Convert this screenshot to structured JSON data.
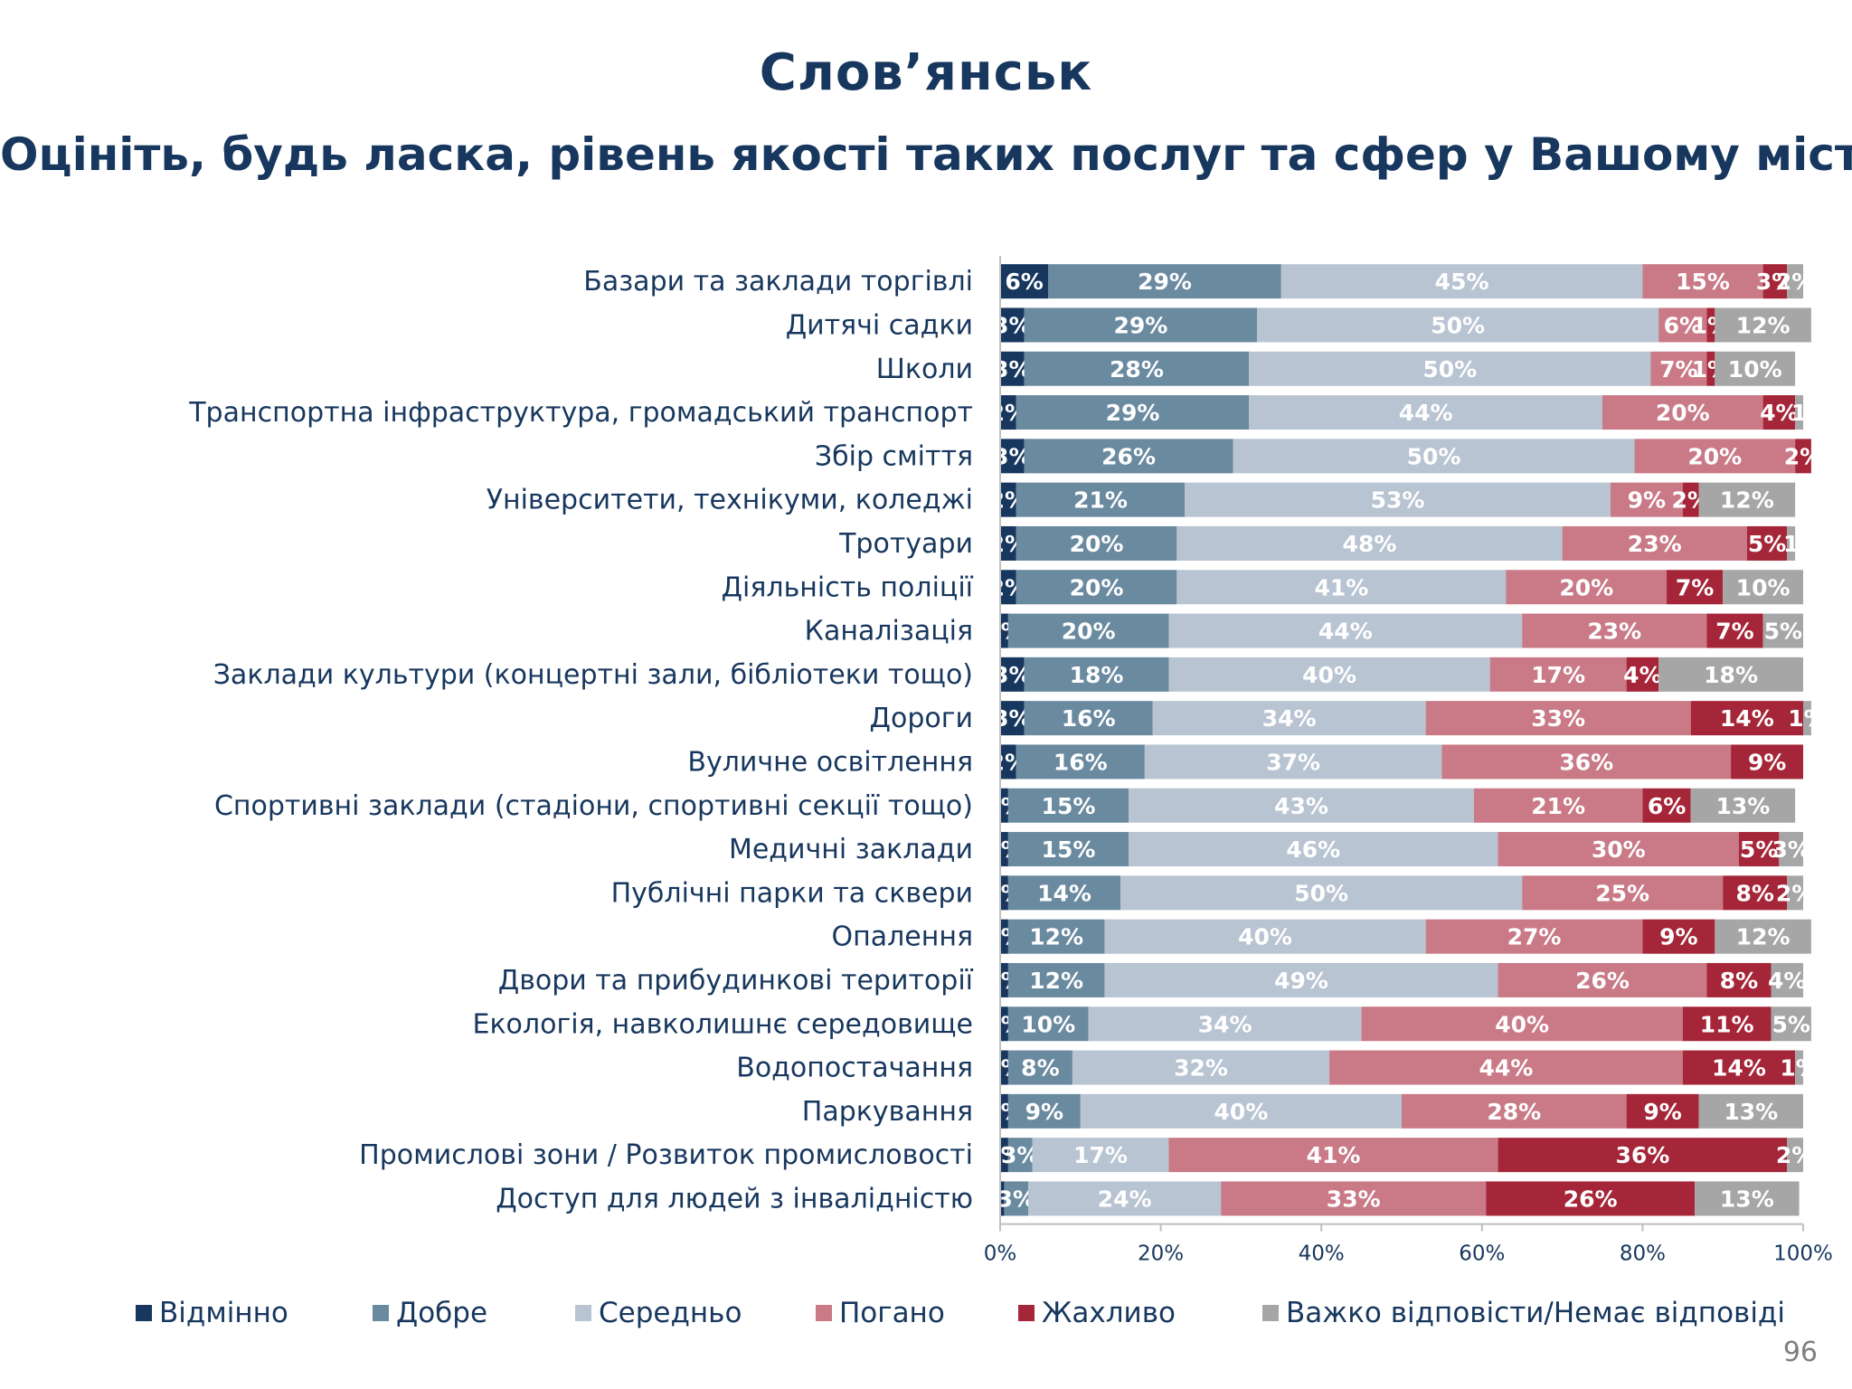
{
  "page": {
    "title": "Слов’янськ",
    "subtitle": "Оцініть, будь ласка, рівень якості таких послуг та сфер у Вашому місті",
    "page_number": "96"
  },
  "chart_data": {
    "type": "bar",
    "orientation": "horizontal",
    "stacked": "percent",
    "title": "",
    "xlabel": "",
    "ylabel": "",
    "xlim": [
      0,
      100
    ],
    "x_ticks": [
      "0%",
      "20%",
      "40%",
      "60%",
      "80%",
      "100%"
    ],
    "grid": false,
    "legend_position": "bottom",
    "categories": [
      "Базари та заклади торгівлі",
      "Дитячі садки",
      "Школи",
      "Транспортна інфраструктура, громадський транспорт",
      "Збір сміття",
      "Університети, технікуми, коледжі",
      "Тротуари",
      "Діяльність поліції",
      "Каналізація",
      "Заклади культури (концертні зали, бібліотеки тощо)",
      "Дороги",
      "Вуличне освітлення",
      "Спортивні заклади (стадіони, спортивні секції тощо)",
      "Медичні заклади",
      "Публічні парки та сквери",
      "Опалення",
      "Двори та прибудинкові території",
      "Екологія, навколишнє середовище",
      "Водопостачання",
      "Паркування",
      "Промислові зони / Розвиток промисловості",
      "Доступ для людей з інвалідністю"
    ],
    "series": [
      {
        "name": "Відмінно",
        "color": "#17375e",
        "values": [
          6,
          3,
          3,
          2,
          3,
          2,
          2,
          2,
          1,
          3,
          3,
          2,
          1,
          1,
          1,
          1,
          1,
          1,
          1,
          1,
          1,
          0.5
        ],
        "labels": [
          "6%",
          "3%",
          "3%",
          "2%",
          "3%",
          "2%",
          "2%",
          "2%",
          "1%",
          "3%",
          "3%",
          "2%",
          "1%",
          "1%",
          "1%",
          "1%",
          "1%",
          "1%",
          "1%",
          "1%",
          "1%",
          ""
        ]
      },
      {
        "name": "Добре",
        "color": "#6a8aa0",
        "values": [
          29,
          29,
          28,
          29,
          26,
          21,
          20,
          20,
          20,
          18,
          16,
          16,
          15,
          15,
          14,
          12,
          12,
          10,
          8,
          9,
          3,
          3
        ],
        "labels": [
          "29%",
          "29%",
          "28%",
          "29%",
          "26%",
          "21%",
          "20%",
          "20%",
          "20%",
          "18%",
          "16%",
          "16%",
          "15%",
          "15%",
          "14%",
          "12%",
          "12%",
          "10%",
          "8%",
          "9%",
          "3%",
          "3%"
        ]
      },
      {
        "name": "Середньо",
        "color": "#b8c4d2",
        "values": [
          45,
          50,
          50,
          44,
          50,
          53,
          48,
          41,
          44,
          40,
          34,
          37,
          43,
          46,
          50,
          40,
          49,
          34,
          32,
          40,
          17,
          24
        ],
        "labels": [
          "45%",
          "50%",
          "50%",
          "44%",
          "50%",
          "53%",
          "48%",
          "41%",
          "44%",
          "40%",
          "34%",
          "37%",
          "43%",
          "46%",
          "50%",
          "40%",
          "49%",
          "34%",
          "32%",
          "40%",
          "17%",
          "24%"
        ]
      },
      {
        "name": "Погано",
        "color": "#c97a86",
        "values": [
          15,
          6,
          7,
          20,
          20,
          9,
          23,
          20,
          23,
          17,
          33,
          36,
          21,
          30,
          25,
          27,
          26,
          40,
          44,
          28,
          41,
          33
        ],
        "labels": [
          "15%",
          "6%",
          "7%",
          "20%",
          "20%",
          "9%",
          "23%",
          "20%",
          "23%",
          "17%",
          "33%",
          "36%",
          "21%",
          "30%",
          "25%",
          "27%",
          "26%",
          "40%",
          "44%",
          "28%",
          "41%",
          "33%"
        ]
      },
      {
        "name": "Жахливо",
        "color": "#a52638",
        "values": [
          3,
          1,
          1,
          4,
          2,
          2,
          5,
          7,
          7,
          4,
          14,
          9,
          6,
          5,
          8,
          9,
          8,
          11,
          14,
          9,
          36,
          26
        ],
        "labels": [
          "3%",
          "1%",
          "1%",
          "4%",
          "2%",
          "2%",
          "5%",
          "7%",
          "7%",
          "4%",
          "14%",
          "9%",
          "6%",
          "5%",
          "8%",
          "9%",
          "8%",
          "11%",
          "14%",
          "9%",
          "36%",
          "26%"
        ]
      },
      {
        "name": "Важко відповісти/Немає відповіді",
        "color": "#a6a6a6",
        "values": [
          2,
          12,
          10,
          1,
          0,
          12,
          1,
          10,
          5,
          18,
          1,
          0,
          13,
          3,
          2,
          12,
          4,
          5,
          1,
          13,
          2,
          13
        ],
        "labels": [
          "2%",
          "12%",
          "10%",
          "1",
          "",
          "12%",
          "1",
          "10%",
          "5%",
          "18%",
          "1%",
          "",
          "13%",
          "3%",
          "2%",
          "12%",
          "4%",
          "5%",
          "1%",
          "13%",
          "2%",
          "13%"
        ]
      }
    ]
  }
}
